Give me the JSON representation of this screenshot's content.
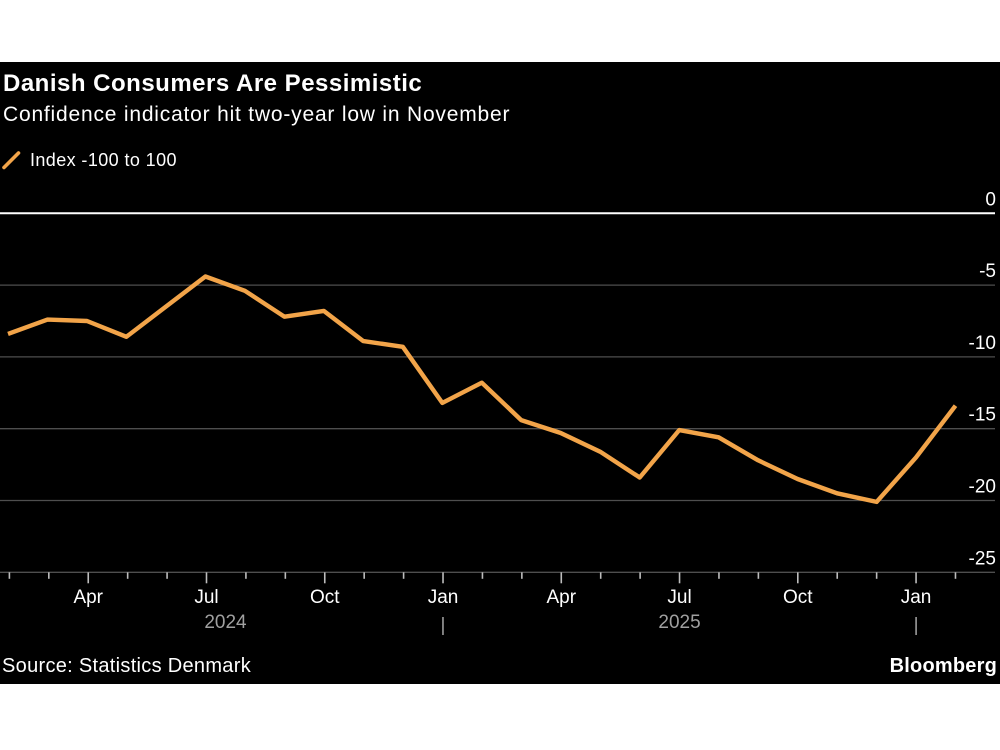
{
  "header": {
    "title": "Danish Consumers Are Pessimistic",
    "subtitle": "Confidence indicator hit two-year low in November"
  },
  "legend": {
    "label": "Index -100 to 100"
  },
  "footer": {
    "source": "Source: Statistics Denmark",
    "brand": "Bloomberg"
  },
  "colors": {
    "page_background": "#FFFFFF",
    "card_background": "#000000",
    "line": "#F2A449",
    "grid": "#4E4E4E",
    "zero_line": "#FFFFFF",
    "axis_text": "#FFFFFF",
    "year_text": "#A0A0A0",
    "tick_mark": "#BDBDBD"
  },
  "chart_data": {
    "type": "line",
    "title": "Danish Consumers Are Pessimistic",
    "subtitle": "Confidence indicator hit two-year low in November",
    "legend_label": "Index -100 to 100",
    "legend_position": "top-left",
    "grid": "horizontal-only",
    "series_color": "#F2A449",
    "x_categories": [
      "Feb 2024",
      "Mar 2024",
      "Apr 2024",
      "May 2024",
      "Jun 2024",
      "Jul 2024",
      "Aug 2024",
      "Sep 2024",
      "Oct 2024",
      "Nov 2024",
      "Dec 2024",
      "Jan 2025",
      "Feb 2025",
      "Mar 2025",
      "Apr 2025",
      "May 2025",
      "Jun 2025",
      "Jul 2025",
      "Aug 2025",
      "Sep 2025",
      "Oct 2025",
      "Nov 2025",
      "Dec 2025",
      "Jan 2026",
      "Feb 2026"
    ],
    "values": [
      -8.4,
      -7.4,
      -7.5,
      -8.6,
      -6.5,
      -4.4,
      -5.4,
      -7.2,
      -6.8,
      -8.9,
      -9.3,
      -13.2,
      -11.8,
      -14.4,
      -15.3,
      -16.6,
      -18.4,
      -15.1,
      -15.6,
      -17.2,
      -18.5,
      -19.5,
      -20.1,
      -17.0,
      -13.4
    ],
    "ylim": [
      -25,
      0
    ],
    "yticks": [
      0,
      -5,
      -10,
      -15,
      -20,
      -25
    ],
    "x_major_tick_labels": [
      "Apr",
      "Jul",
      "Oct",
      "Jan",
      "Apr",
      "Jul",
      "Oct",
      "Jan"
    ],
    "x_year_labels": [
      "2024",
      "2025"
    ]
  }
}
